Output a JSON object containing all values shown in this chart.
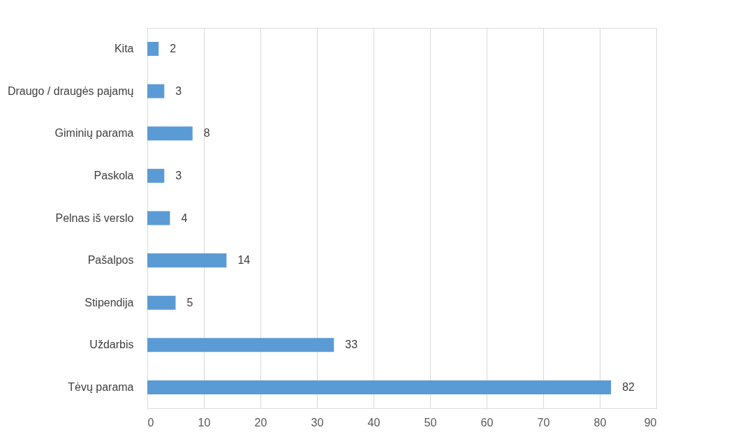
{
  "chart_data": {
    "type": "bar",
    "orientation": "horizontal",
    "categories": [
      "Kita",
      "Draugo / draugės pajamų",
      "Giminių parama",
      "Paskola",
      "Pelnas iš verslo",
      "Pašalpos",
      "Stipendija",
      "Uždarbis",
      "Tėvų parama"
    ],
    "values": [
      2,
      3,
      8,
      3,
      4,
      14,
      5,
      33,
      82
    ],
    "color": "#5b9bd5",
    "xlim": [
      0,
      90
    ],
    "xticks": [
      0,
      10,
      20,
      30,
      40,
      50,
      60,
      70,
      80,
      90
    ],
    "grid": "x",
    "data_labels": true
  }
}
